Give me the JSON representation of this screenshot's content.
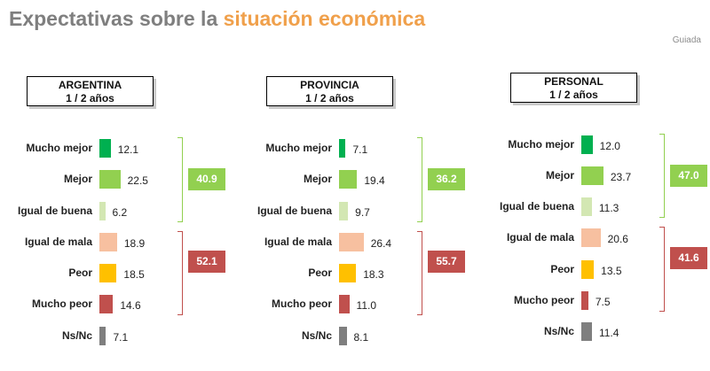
{
  "title": {
    "prefix": "Expectativas sobre la ",
    "highlight": "situación económica"
  },
  "subtitle": "Guiada",
  "chart_data": [
    {
      "type": "bar",
      "title": "ARGENTINA",
      "subtitle": "1 / 2 años",
      "categories": [
        "Mucho mejor",
        "Mejor",
        "Igual de buena",
        "Igual de mala",
        "Peor",
        "Mucho peor",
        "Ns/Nc"
      ],
      "values": [
        12.1,
        22.5,
        6.2,
        18.9,
        18.5,
        14.6,
        7.1
      ],
      "totals": {
        "positive": "40.9",
        "negative": "52.1"
      }
    },
    {
      "type": "bar",
      "title": "PROVINCIA",
      "subtitle": "1 / 2 años",
      "categories": [
        "Mucho mejor",
        "Mejor",
        "Igual de buena",
        "Igual de mala",
        "Peor",
        "Mucho peor",
        "Ns/Nc"
      ],
      "values": [
        7.1,
        19.4,
        9.7,
        26.4,
        18.3,
        11.0,
        8.1
      ],
      "totals": {
        "positive": "36.2",
        "negative": "55.7"
      }
    },
    {
      "type": "bar",
      "title": "PERSONAL",
      "subtitle": "1 / 2 años",
      "categories": [
        "Mucho mejor",
        "Mejor",
        "Igual de buena",
        "Igual de mala",
        "Peor",
        "Mucho peor",
        "Ns/Nc"
      ],
      "values": [
        12.0,
        23.7,
        11.3,
        20.6,
        13.5,
        7.5,
        11.4
      ],
      "totals": {
        "positive": "47.0",
        "negative": "41.6"
      }
    }
  ],
  "colors": {
    "bars": [
      "#00b050",
      "#92d050",
      "#d3e7b3",
      "#f7c0a0",
      "#ffc000",
      "#c0504d",
      "#7f7f7f"
    ],
    "positive_box": "#92d050",
    "negative_box": "#c0504d",
    "positive_brace": "#92d050",
    "negative_brace": "#c0504d"
  }
}
